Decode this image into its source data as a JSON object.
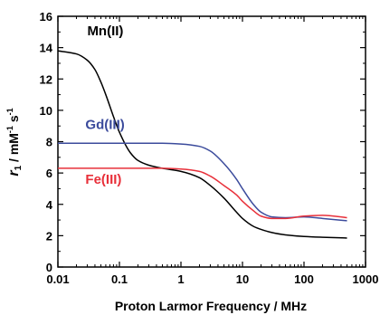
{
  "chart_data": {
    "type": "line",
    "xscale": "log",
    "xlim": [
      0.01,
      1000
    ],
    "ylim": [
      0,
      16
    ],
    "xticks": [
      {
        "value": 0.01,
        "label": "0.01"
      },
      {
        "value": 0.1,
        "label": "0.1"
      },
      {
        "value": 1,
        "label": "1"
      },
      {
        "value": 10,
        "label": "10"
      },
      {
        "value": 100,
        "label": "100"
      },
      {
        "value": 1000,
        "label": "1000"
      }
    ],
    "yticks": [
      {
        "value": 0,
        "label": "0"
      },
      {
        "value": 2,
        "label": "2"
      },
      {
        "value": 4,
        "label": "4"
      },
      {
        "value": 6,
        "label": "6"
      },
      {
        "value": 8,
        "label": "8"
      },
      {
        "value": 10,
        "label": "10"
      },
      {
        "value": 12,
        "label": "12"
      },
      {
        "value": 14,
        "label": "14"
      },
      {
        "value": 16,
        "label": "16"
      }
    ],
    "xlabel": "Proton Larmor Frequency / MHz",
    "ylabel": {
      "italic": "r",
      "sub": "1",
      "rest": " / mM",
      "sup1": "-1",
      "mid": " s",
      "sup2": "-1"
    },
    "grid": false,
    "legend": "inline labels",
    "series": [
      {
        "name": "Mn(II)",
        "color": "#000000",
        "points": [
          [
            0.01,
            13.8
          ],
          [
            0.02,
            13.6
          ],
          [
            0.03,
            13.2
          ],
          [
            0.04,
            12.6
          ],
          [
            0.05,
            11.8
          ],
          [
            0.06,
            11.0
          ],
          [
            0.08,
            9.6
          ],
          [
            0.1,
            8.6
          ],
          [
            0.15,
            7.3
          ],
          [
            0.2,
            6.8
          ],
          [
            0.3,
            6.5
          ],
          [
            0.5,
            6.3
          ],
          [
            1,
            6.1
          ],
          [
            2,
            5.7
          ],
          [
            3,
            5.2
          ],
          [
            5,
            4.4
          ],
          [
            8,
            3.5
          ],
          [
            10,
            3.1
          ],
          [
            15,
            2.6
          ],
          [
            20,
            2.4
          ],
          [
            30,
            2.2
          ],
          [
            50,
            2.05
          ],
          [
            100,
            1.95
          ],
          [
            200,
            1.9
          ],
          [
            500,
            1.85
          ]
        ]
      },
      {
        "name": "Gd(III)",
        "color": "#3b4b9c",
        "points": [
          [
            0.01,
            7.9
          ],
          [
            0.1,
            7.9
          ],
          [
            0.5,
            7.9
          ],
          [
            1,
            7.85
          ],
          [
            2,
            7.7
          ],
          [
            3,
            7.4
          ],
          [
            5,
            6.6
          ],
          [
            8,
            5.6
          ],
          [
            10,
            5.0
          ],
          [
            15,
            4.0
          ],
          [
            20,
            3.5
          ],
          [
            30,
            3.2
          ],
          [
            50,
            3.15
          ],
          [
            100,
            3.2
          ],
          [
            200,
            3.1
          ],
          [
            500,
            2.95
          ]
        ]
      },
      {
        "name": "Fe(III)",
        "color": "#e8303a",
        "points": [
          [
            0.01,
            6.3
          ],
          [
            0.1,
            6.3
          ],
          [
            0.5,
            6.3
          ],
          [
            1,
            6.25
          ],
          [
            2,
            6.1
          ],
          [
            3,
            5.8
          ],
          [
            5,
            5.2
          ],
          [
            8,
            4.6
          ],
          [
            10,
            4.2
          ],
          [
            15,
            3.6
          ],
          [
            20,
            3.25
          ],
          [
            30,
            3.1
          ],
          [
            50,
            3.1
          ],
          [
            100,
            3.25
          ],
          [
            200,
            3.3
          ],
          [
            500,
            3.15
          ]
        ]
      }
    ],
    "labels": [
      {
        "text": "Mn(II)",
        "series": "Mn(II)",
        "x": 0.03,
        "y": 14.8
      },
      {
        "text": "Gd(III)",
        "series": "Gd(III)",
        "x": 0.028,
        "y": 8.8
      },
      {
        "text": "Fe(III)",
        "series": "Fe(III)",
        "x": 0.028,
        "y": 5.3
      }
    ]
  }
}
